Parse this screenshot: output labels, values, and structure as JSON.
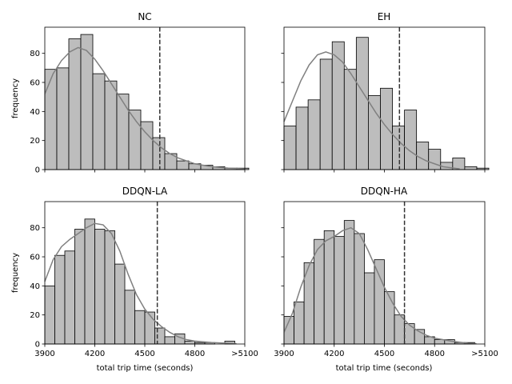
{
  "figure": {
    "background": "#ffffff",
    "bar_color": "#bdbdbd",
    "kde_color": "#808080",
    "vline_color": "#333333"
  },
  "chart_data": [
    {
      "type": "bar",
      "title": "NC",
      "xlabel": "",
      "ylabel": "frequency",
      "bin_start": 3900,
      "bin_width": 72,
      "values": [
        69,
        70,
        90,
        93,
        66,
        61,
        52,
        41,
        33,
        22,
        11,
        6,
        4,
        3,
        2,
        1,
        1
      ],
      "kde": [
        [
          3900,
          52
        ],
        [
          3950,
          66
        ],
        [
          4000,
          75
        ],
        [
          4050,
          81
        ],
        [
          4100,
          84
        ],
        [
          4150,
          82
        ],
        [
          4200,
          76
        ],
        [
          4250,
          68
        ],
        [
          4300,
          59
        ],
        [
          4350,
          50
        ],
        [
          4400,
          41
        ],
        [
          4450,
          33
        ],
        [
          4500,
          26
        ],
        [
          4550,
          20
        ],
        [
          4600,
          15
        ],
        [
          4650,
          11
        ],
        [
          4700,
          8
        ],
        [
          4750,
          6
        ],
        [
          4800,
          4
        ],
        [
          4900,
          2
        ],
        [
          5000,
          1
        ],
        [
          5100,
          0.5
        ]
      ],
      "vline": 4590,
      "xlim": [
        3900,
        5100
      ],
      "ylim": [
        0,
        98
      ],
      "xticks": [
        3900,
        4200,
        4500,
        4800,
        5100
      ],
      "xticklabels": [
        "3900",
        "4200",
        "4500",
        "4800",
        ">5100"
      ],
      "show_xticklabels": false,
      "yticks": [
        0,
        20,
        40,
        60,
        80
      ],
      "show_yticklabels": true,
      "grid": false
    },
    {
      "type": "bar",
      "title": "EH",
      "xlabel": "",
      "ylabel": "",
      "bin_start": 3900,
      "bin_width": 72,
      "values": [
        30,
        43,
        48,
        76,
        88,
        69,
        91,
        51,
        56,
        30,
        41,
        19,
        14,
        5,
        8,
        2,
        1
      ],
      "kde": [
        [
          3900,
          33
        ],
        [
          3950,
          47
        ],
        [
          4000,
          61
        ],
        [
          4050,
          72
        ],
        [
          4100,
          79
        ],
        [
          4150,
          81
        ],
        [
          4200,
          79
        ],
        [
          4250,
          74
        ],
        [
          4300,
          66
        ],
        [
          4350,
          57
        ],
        [
          4400,
          48
        ],
        [
          4450,
          39
        ],
        [
          4500,
          31
        ],
        [
          4550,
          24
        ],
        [
          4600,
          18
        ],
        [
          4650,
          13
        ],
        [
          4700,
          9
        ],
        [
          4750,
          6
        ],
        [
          4800,
          4
        ],
        [
          4850,
          2
        ],
        [
          4950,
          0.5
        ]
      ],
      "vline": 4590,
      "xlim": [
        3900,
        5100
      ],
      "ylim": [
        0,
        98
      ],
      "xticks": [
        3900,
        4200,
        4500,
        4800,
        5100
      ],
      "xticklabels": [
        "3900",
        "4200",
        "4500",
        "4800",
        ">5100"
      ],
      "show_xticklabels": false,
      "yticks": [
        0,
        20,
        40,
        60,
        80
      ],
      "show_yticklabels": false,
      "grid": false
    },
    {
      "type": "bar",
      "title": "DDQN-LA",
      "xlabel": "total trip time (seconds)",
      "ylabel": "frequency",
      "bin_start": 3900,
      "bin_width": 60,
      "values": [
        40,
        61,
        64,
        79,
        86,
        79,
        78,
        55,
        37,
        23,
        22,
        11,
        5,
        7,
        2,
        1,
        1,
        0,
        2
      ],
      "kde": [
        [
          3900,
          43
        ],
        [
          3950,
          58
        ],
        [
          4000,
          67
        ],
        [
          4050,
          72
        ],
        [
          4100,
          76
        ],
        [
          4150,
          80
        ],
        [
          4200,
          83
        ],
        [
          4250,
          82
        ],
        [
          4300,
          76
        ],
        [
          4350,
          64
        ],
        [
          4400,
          48
        ],
        [
          4450,
          34
        ],
        [
          4500,
          24
        ],
        [
          4550,
          17
        ],
        [
          4600,
          12
        ],
        [
          4650,
          8
        ],
        [
          4700,
          5
        ],
        [
          4750,
          3
        ],
        [
          4800,
          2
        ],
        [
          4900,
          1
        ],
        [
          5000,
          0.5
        ],
        [
          5050,
          0.2
        ]
      ],
      "vline": 4575,
      "xlim": [
        3900,
        5100
      ],
      "ylim": [
        0,
        98
      ],
      "xticks": [
        3900,
        4200,
        4500,
        4800,
        5100
      ],
      "xticklabels": [
        "3900",
        "4200",
        "4500",
        "4800",
        ">5100"
      ],
      "show_xticklabels": true,
      "yticks": [
        0,
        20,
        40,
        60,
        80
      ],
      "show_yticklabels": true,
      "grid": false
    },
    {
      "type": "bar",
      "title": "DDQN-HA",
      "xlabel": "total trip time (seconds)",
      "ylabel": "",
      "bin_start": 3900,
      "bin_width": 60,
      "values": [
        19,
        29,
        56,
        72,
        78,
        74,
        85,
        76,
        49,
        58,
        36,
        20,
        14,
        10,
        5,
        3,
        3,
        1,
        1
      ],
      "kde": [
        [
          3900,
          8
        ],
        [
          3950,
          21
        ],
        [
          4000,
          39
        ],
        [
          4050,
          54
        ],
        [
          4100,
          65
        ],
        [
          4150,
          71
        ],
        [
          4200,
          74
        ],
        [
          4250,
          78
        ],
        [
          4300,
          80
        ],
        [
          4350,
          76
        ],
        [
          4400,
          65
        ],
        [
          4450,
          52
        ],
        [
          4500,
          39
        ],
        [
          4550,
          28
        ],
        [
          4600,
          19
        ],
        [
          4650,
          13
        ],
        [
          4700,
          9
        ],
        [
          4750,
          6
        ],
        [
          4800,
          4
        ],
        [
          4900,
          2
        ],
        [
          5000,
          0.5
        ],
        [
          5050,
          0.2
        ]
      ],
      "vline": 4620,
      "xlim": [
        3900,
        5100
      ],
      "ylim": [
        0,
        98
      ],
      "xticks": [
        3900,
        4200,
        4500,
        4800,
        5100
      ],
      "xticklabels": [
        "3900",
        "4200",
        "4500",
        "4800",
        ">5100"
      ],
      "show_xticklabels": true,
      "yticks": [
        0,
        20,
        40,
        60,
        80
      ],
      "show_yticklabels": false,
      "grid": false
    }
  ]
}
